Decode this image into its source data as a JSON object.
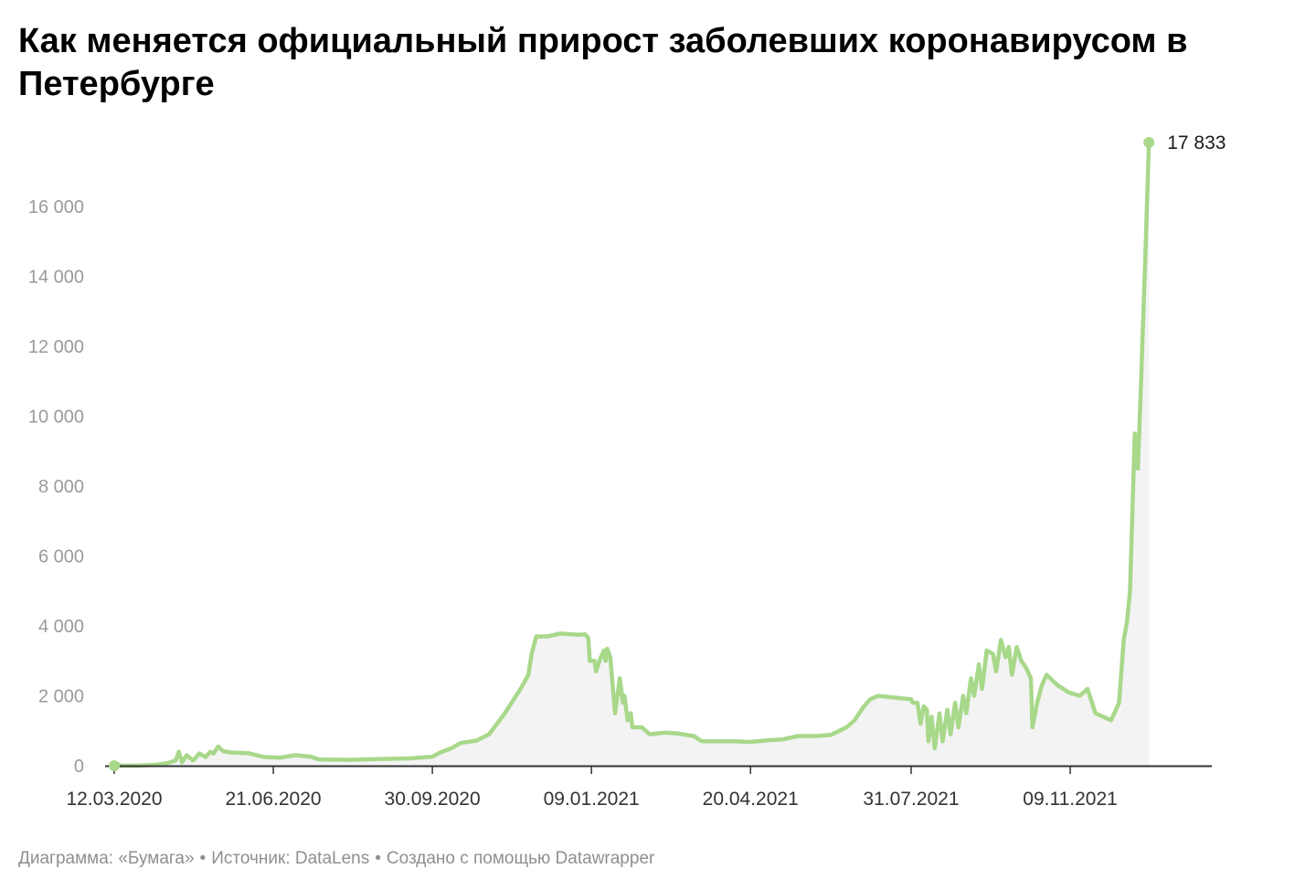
{
  "title": "Как меняется официальный прирост заболевших коронавирусом в Петербурге",
  "footer": {
    "chart_credit": "Диаграмма: «Бумага»",
    "source": "Источник: DataLens",
    "created_with": "Создано с помощью Datawrapper",
    "separator": "•"
  },
  "colors": {
    "line": "#a8d88a",
    "area": "#f3f3f3",
    "axis": "#333333",
    "tick_text": "#9a9a9a"
  },
  "chart_data": {
    "type": "area",
    "title": "Как меняется официальный прирост заболевших коронавирусом в Петербурге",
    "xlabel": "",
    "ylabel": "",
    "x_range": [
      "2020-03-12",
      "2022-02-05"
    ],
    "ylim": [
      0,
      18000
    ],
    "grid": false,
    "y_ticks": [
      {
        "value": 0,
        "label": "0"
      },
      {
        "value": 2000,
        "label": "2 000"
      },
      {
        "value": 4000,
        "label": "4 000"
      },
      {
        "value": 6000,
        "label": "6 000"
      },
      {
        "value": 8000,
        "label": "8 000"
      },
      {
        "value": 10000,
        "label": "10 000"
      },
      {
        "value": 12000,
        "label": "12 000"
      },
      {
        "value": 14000,
        "label": "14 000"
      },
      {
        "value": 16000,
        "label": "16 000"
      }
    ],
    "x_ticks": [
      {
        "date": "2020-03-12",
        "label": "12.03.2020"
      },
      {
        "date": "2020-06-21",
        "label": "21.06.2020"
      },
      {
        "date": "2020-09-30",
        "label": "30.09.2020"
      },
      {
        "date": "2021-01-09",
        "label": "09.01.2021"
      },
      {
        "date": "2021-04-20",
        "label": "20.04.2021"
      },
      {
        "date": "2021-07-31",
        "label": "31.07.2021"
      },
      {
        "date": "2021-11-09",
        "label": "09.11.2021"
      }
    ],
    "end_label": "17 833",
    "series": [
      {
        "points": [
          [
            "2020-03-12",
            0
          ],
          [
            "2020-03-14",
            50
          ],
          [
            "2020-03-16",
            0
          ],
          [
            "2020-03-25",
            0
          ],
          [
            "2020-04-05",
            20
          ],
          [
            "2020-04-10",
            40
          ],
          [
            "2020-04-15",
            80
          ],
          [
            "2020-04-20",
            150
          ],
          [
            "2020-04-22",
            400
          ],
          [
            "2020-04-24",
            100
          ],
          [
            "2020-04-27",
            300
          ],
          [
            "2020-05-01",
            150
          ],
          [
            "2020-05-05",
            350
          ],
          [
            "2020-05-09",
            250
          ],
          [
            "2020-05-12",
            400
          ],
          [
            "2020-05-14",
            350
          ],
          [
            "2020-05-17",
            550
          ],
          [
            "2020-05-20",
            420
          ],
          [
            "2020-05-25",
            380
          ],
          [
            "2020-06-05",
            360
          ],
          [
            "2020-06-15",
            250
          ],
          [
            "2020-06-25",
            230
          ],
          [
            "2020-07-05",
            300
          ],
          [
            "2020-07-15",
            260
          ],
          [
            "2020-07-20",
            180
          ],
          [
            "2020-08-10",
            170
          ],
          [
            "2020-08-25",
            190
          ],
          [
            "2020-09-15",
            210
          ],
          [
            "2020-09-30",
            260
          ],
          [
            "2020-10-05",
            380
          ],
          [
            "2020-10-12",
            500
          ],
          [
            "2020-10-18",
            650
          ],
          [
            "2020-10-28",
            720
          ],
          [
            "2020-11-05",
            900
          ],
          [
            "2020-11-15",
            1500
          ],
          [
            "2020-11-25",
            2200
          ],
          [
            "2020-11-30",
            2600
          ],
          [
            "2020-12-02",
            3200
          ],
          [
            "2020-12-05",
            3700
          ],
          [
            "2020-12-12",
            3700
          ],
          [
            "2020-12-20",
            3780
          ],
          [
            "2021-01-01",
            3750
          ],
          [
            "2021-01-05",
            3760
          ],
          [
            "2021-01-07",
            3650
          ],
          [
            "2021-01-08",
            3000
          ],
          [
            "2021-01-11",
            3000
          ],
          [
            "2021-01-12",
            2700
          ],
          [
            "2021-01-14",
            3000
          ],
          [
            "2021-01-17",
            3300
          ],
          [
            "2021-01-18",
            3000
          ],
          [
            "2021-01-19",
            3350
          ],
          [
            "2021-01-21",
            3100
          ],
          [
            "2021-01-24",
            1500
          ],
          [
            "2021-01-27",
            2500
          ],
          [
            "2021-01-29",
            1800
          ],
          [
            "2021-01-30",
            2000
          ],
          [
            "2021-02-01",
            1300
          ],
          [
            "2021-02-03",
            1500
          ],
          [
            "2021-02-04",
            1100
          ],
          [
            "2021-02-10",
            1100
          ],
          [
            "2021-02-15",
            900
          ],
          [
            "2021-02-25",
            950
          ],
          [
            "2021-03-05",
            920
          ],
          [
            "2021-03-15",
            850
          ],
          [
            "2021-03-20",
            700
          ],
          [
            "2021-04-10",
            700
          ],
          [
            "2021-04-20",
            680
          ],
          [
            "2021-05-01",
            730
          ],
          [
            "2021-05-10",
            750
          ],
          [
            "2021-05-20",
            850
          ],
          [
            "2021-06-01",
            850
          ],
          [
            "2021-06-10",
            880
          ],
          [
            "2021-06-20",
            1100
          ],
          [
            "2021-06-25",
            1300
          ],
          [
            "2021-07-01",
            1700
          ],
          [
            "2021-07-05",
            1900
          ],
          [
            "2021-07-10",
            2000
          ],
          [
            "2021-07-20",
            1950
          ],
          [
            "2021-07-31",
            1900
          ],
          [
            "2021-08-01",
            1800
          ],
          [
            "2021-08-04",
            1800
          ],
          [
            "2021-08-06",
            1200
          ],
          [
            "2021-08-08",
            1700
          ],
          [
            "2021-08-10",
            1600
          ],
          [
            "2021-08-11",
            700
          ],
          [
            "2021-08-13",
            1400
          ],
          [
            "2021-08-15",
            500
          ],
          [
            "2021-08-18",
            1500
          ],
          [
            "2021-08-20",
            700
          ],
          [
            "2021-08-23",
            1600
          ],
          [
            "2021-08-25",
            900
          ],
          [
            "2021-08-28",
            1800
          ],
          [
            "2021-08-30",
            1100
          ],
          [
            "2021-09-02",
            2000
          ],
          [
            "2021-09-04",
            1500
          ],
          [
            "2021-09-07",
            2500
          ],
          [
            "2021-09-09",
            2000
          ],
          [
            "2021-09-12",
            2900
          ],
          [
            "2021-09-14",
            2200
          ],
          [
            "2021-09-17",
            3300
          ],
          [
            "2021-09-21",
            3200
          ],
          [
            "2021-09-23",
            2700
          ],
          [
            "2021-09-26",
            3600
          ],
          [
            "2021-09-29",
            3100
          ],
          [
            "2021-10-01",
            3400
          ],
          [
            "2021-10-03",
            2600
          ],
          [
            "2021-10-06",
            3400
          ],
          [
            "2021-10-09",
            3000
          ],
          [
            "2021-10-12",
            2800
          ],
          [
            "2021-10-15",
            2500
          ],
          [
            "2021-10-16",
            1100
          ],
          [
            "2021-10-19",
            1800
          ],
          [
            "2021-10-22",
            2300
          ],
          [
            "2021-10-25",
            2600
          ],
          [
            "2021-11-01",
            2300
          ],
          [
            "2021-11-08",
            2100
          ],
          [
            "2021-11-15",
            2000
          ],
          [
            "2021-11-20",
            2200
          ],
          [
            "2021-11-25",
            1500
          ],
          [
            "2021-12-05",
            1300
          ],
          [
            "2021-12-10",
            1800
          ],
          [
            "2021-12-13",
            3600
          ],
          [
            "2021-12-15",
            4100
          ],
          [
            "2021-12-17",
            5000
          ],
          [
            "2021-12-20",
            9500
          ],
          [
            "2021-12-22",
            8500
          ],
          [
            "2021-12-24",
            11000
          ],
          [
            "2021-12-27",
            15000
          ],
          [
            "2021-12-29",
            17833
          ]
        ]
      }
    ]
  }
}
